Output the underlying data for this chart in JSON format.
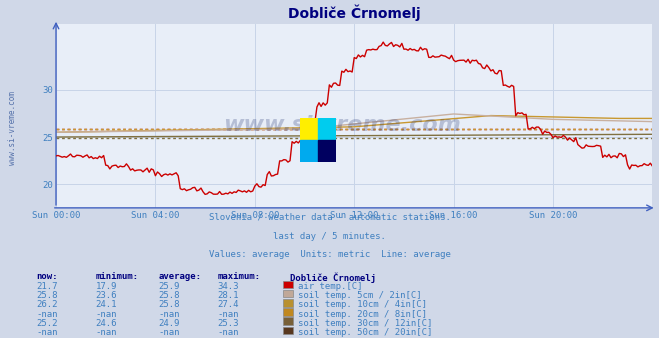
{
  "title": "Dobliče Črnomelj",
  "bg_color": "#d0d8e8",
  "plot_bg_color": "#e8eef8",
  "grid_color": "#c8d4e8",
  "title_color": "#000080",
  "axis_color": "#4060c0",
  "text_color": "#4080c0",
  "subtitle_lines": [
    "Slovenia / weather data - automatic stations.",
    "last day / 5 minutes.",
    "Values: average  Units: metric  Line: average"
  ],
  "xlim": [
    0,
    288
  ],
  "ylim": [
    17.5,
    37
  ],
  "yticks": [
    20,
    25,
    30
  ],
  "xtick_positions": [
    0,
    48,
    96,
    144,
    192,
    240,
    288
  ],
  "xtick_labels": [
    "Sun 00:00",
    "Sun 04:00",
    "Sun 08:00",
    "Sun 12:00",
    "Sun 16:00",
    "Sun 20:00",
    ""
  ],
  "avg_air_temp": 25.9,
  "avg_soil5": 25.8,
  "avg_soil10": 25.8,
  "avg_soil30": 24.9,
  "line_colors": {
    "air": "#cc0000",
    "soil5": "#c8b0a0",
    "soil10": "#c89830",
    "soil20": "#c89020",
    "soil30": "#807040",
    "soil50": "#604020"
  },
  "legend_data": [
    {
      "now": "21.7",
      "min": "17.9",
      "avg": "25.9",
      "max": "34.3",
      "color": "#cc0000",
      "label": "air temp.[C]"
    },
    {
      "now": "25.8",
      "min": "23.6",
      "avg": "25.8",
      "max": "28.1",
      "color": "#c0a898",
      "label": "soil temp. 5cm / 2in[C]"
    },
    {
      "now": "26.2",
      "min": "24.1",
      "avg": "25.8",
      "max": "27.4",
      "color": "#b89030",
      "label": "soil temp. 10cm / 4in[C]"
    },
    {
      "now": "-nan",
      "min": "-nan",
      "avg": "-nan",
      "max": "-nan",
      "color": "#c08820",
      "label": "soil temp. 20cm / 8in[C]"
    },
    {
      "now": "25.2",
      "min": "24.6",
      "avg": "24.9",
      "max": "25.3",
      "color": "#786038",
      "label": "soil temp. 30cm / 12in[C]"
    },
    {
      "now": "-nan",
      "min": "-nan",
      "avg": "-nan",
      "max": "-nan",
      "color": "#583820",
      "label": "soil temp. 50cm / 20in[C]"
    }
  ]
}
